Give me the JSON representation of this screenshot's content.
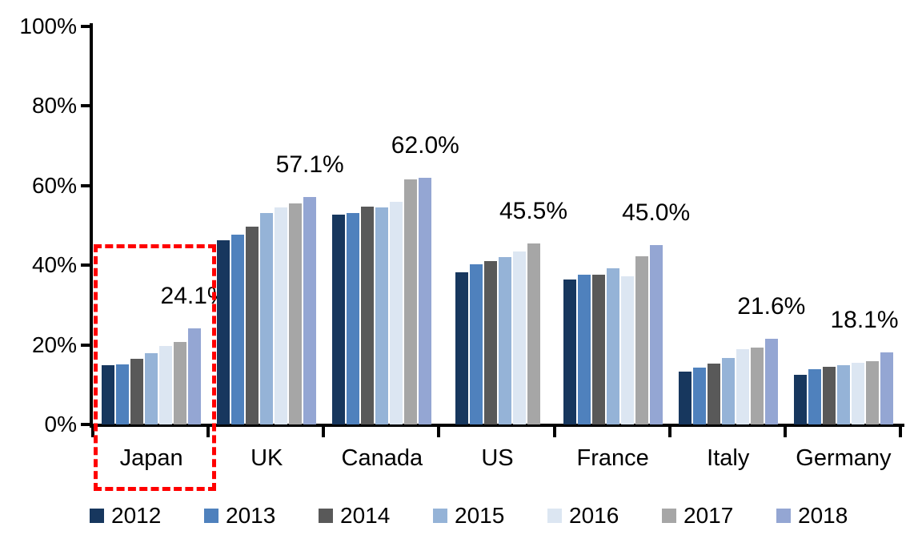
{
  "chart_data": {
    "type": "bar",
    "title": "",
    "xlabel": "",
    "ylabel": "",
    "categories": [
      "Japan",
      "UK",
      "Canada",
      "US",
      "France",
      "Italy",
      "Germany"
    ],
    "series": [
      {
        "name": "2012",
        "color": "#17375E",
        "values": [
          14.9,
          46.2,
          52.8,
          38.2,
          36.5,
          13.2,
          12.4
        ]
      },
      {
        "name": "2013",
        "color": "#4F81BD",
        "values": [
          15.0,
          47.7,
          53.2,
          40.2,
          37.7,
          14.2,
          13.9
        ]
      },
      {
        "name": "2014",
        "color": "#595959",
        "values": [
          16.5,
          49.7,
          54.7,
          41.0,
          37.6,
          15.3,
          14.4
        ]
      },
      {
        "name": "2015",
        "color": "#95B3D7",
        "values": [
          18.0,
          53.2,
          54.5,
          42.0,
          39.2,
          16.8,
          14.8
        ]
      },
      {
        "name": "2016",
        "color": "#DCE6F2",
        "values": [
          19.8,
          54.5,
          56.0,
          43.5,
          37.3,
          19.0,
          15.4
        ]
      },
      {
        "name": "2017",
        "color": "#A6A6A6",
        "values": [
          20.8,
          55.6,
          61.5,
          45.5,
          42.3,
          19.3,
          15.8
        ]
      },
      {
        "name": "2018",
        "color": "#94A6D3",
        "values": [
          24.1,
          57.1,
          62.0,
          null,
          45.0,
          21.6,
          18.1
        ]
      }
    ],
    "data_labels": [
      "24.1%",
      "57.1%",
      "62.0%",
      "45.5%",
      "45.0%",
      "21.6%",
      "18.1%"
    ],
    "yticks": [
      "0%",
      "20%",
      "40%",
      "60%",
      "80%",
      "100%"
    ],
    "ylim": [
      0,
      100
    ],
    "grid": false,
    "legend_position": "bottom",
    "axis_color": "#000000",
    "highlight": {
      "category": "Japan",
      "style": "red-dashed-box",
      "color": "#FF0000"
    }
  }
}
